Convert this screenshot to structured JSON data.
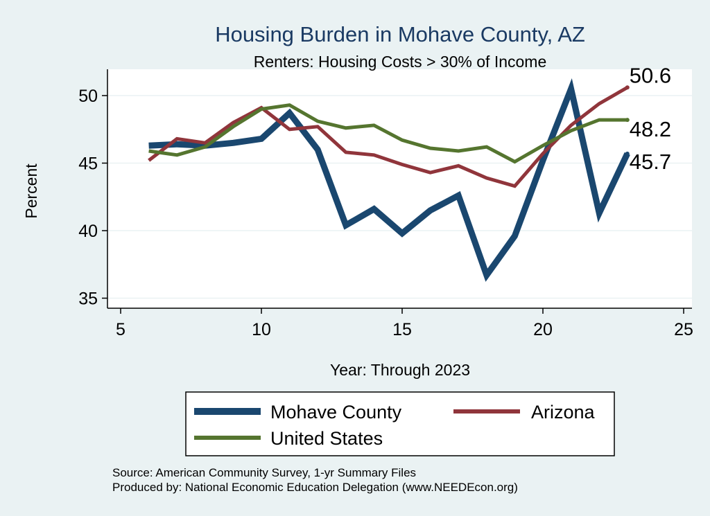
{
  "chart_data": {
    "type": "line",
    "title": "Housing Burden in Mohave County, AZ",
    "subtitle": "Renters: Housing Costs > 30% of Income",
    "xlabel": "Year: Through 2023",
    "ylabel": "Percent",
    "xlim": [
      5,
      25
    ],
    "ylim": [
      35,
      51
    ],
    "x_ticks": [
      5,
      10,
      15,
      20,
      25
    ],
    "y_ticks": [
      35,
      40,
      45,
      50
    ],
    "grid": "horizontal",
    "legend_position": "bottom",
    "x": [
      6,
      7,
      8,
      9,
      10,
      11,
      12,
      13,
      14,
      15,
      16,
      17,
      18,
      19,
      20,
      21,
      22,
      23
    ],
    "series": [
      {
        "name": "Mohave County",
        "color": "#1a476f",
        "width": "thick",
        "values": [
          46.3,
          46.4,
          46.3,
          46.5,
          46.8,
          48.7,
          46.0,
          40.4,
          41.6,
          39.8,
          41.5,
          42.6,
          36.7,
          39.6,
          45.2,
          50.5,
          41.3,
          45.7
        ],
        "end_label": "45.7"
      },
      {
        "name": "Arizona",
        "color": "#90353b",
        "width": "normal",
        "values": [
          45.2,
          46.8,
          46.5,
          48.0,
          49.1,
          47.5,
          47.7,
          45.8,
          45.6,
          44.9,
          44.3,
          44.8,
          43.9,
          43.3,
          45.7,
          47.8,
          49.4,
          50.6
        ],
        "end_label": "50.6"
      },
      {
        "name": "United States",
        "color": "#55752f",
        "width": "normal",
        "values": [
          45.9,
          45.6,
          46.2,
          47.7,
          49.0,
          49.3,
          48.1,
          47.6,
          47.8,
          46.7,
          46.1,
          45.9,
          46.2,
          45.1,
          46.3,
          47.4,
          48.2,
          48.2
        ],
        "end_label": "48.2"
      }
    ]
  },
  "notes": {
    "source": "Source: American Community Survey, 1-yr Summary Files",
    "produced_by": "Produced by: National Economic Education Delegation (www.NEEDEcon.org)"
  }
}
